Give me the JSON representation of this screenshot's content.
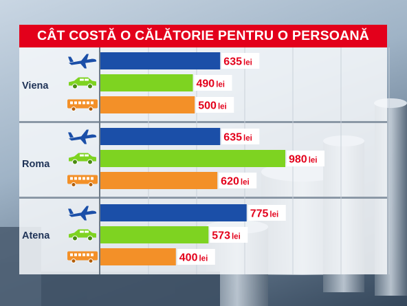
{
  "chart_data": {
    "type": "bar",
    "title": "CÂT COSTĂ O CĂLĂTORIE PENTRU O PERSOANĂ",
    "categories": [
      "Viena",
      "Roma",
      "Atena"
    ],
    "series": [
      {
        "icon": "airplane-icon",
        "color": "#1b4fa8",
        "values": [
          635,
          635,
          775
        ]
      },
      {
        "icon": "car-icon",
        "color": "#7ed321",
        "values": [
          490,
          980,
          573
        ]
      },
      {
        "icon": "bus-icon",
        "color": "#f39028",
        "values": [
          500,
          620,
          400
        ]
      }
    ],
    "value_suffix": " lei",
    "xlim": [
      0,
      980
    ],
    "grid": true
  }
}
